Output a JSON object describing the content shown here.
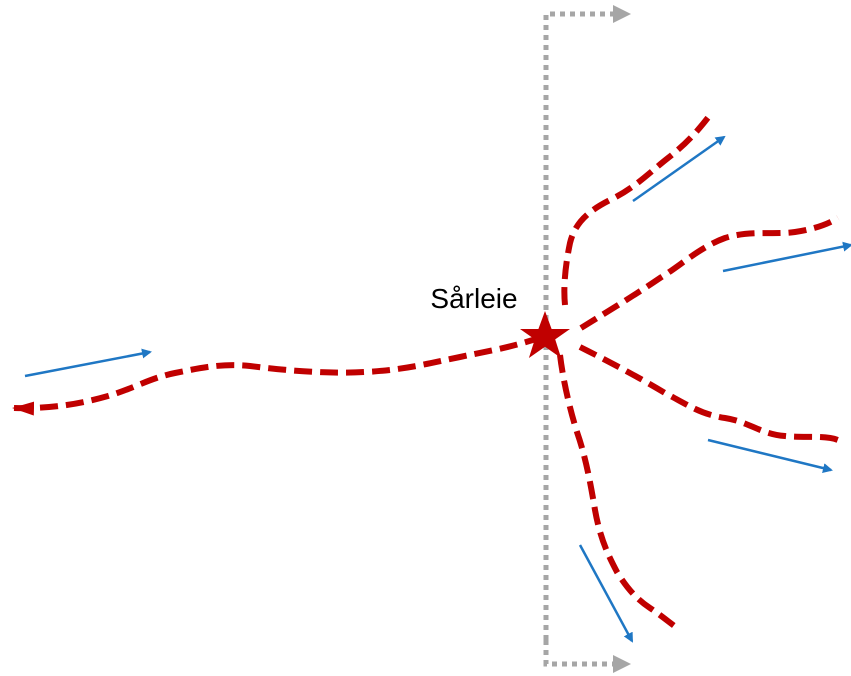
{
  "diagram": {
    "label": "Sårleie",
    "colors": {
      "path": "#c00000",
      "direction_arrow": "#1f77c4",
      "section_line": "#a6a6a6",
      "text": "#000000"
    },
    "icons": {
      "origin_marker": "star-icon"
    }
  }
}
